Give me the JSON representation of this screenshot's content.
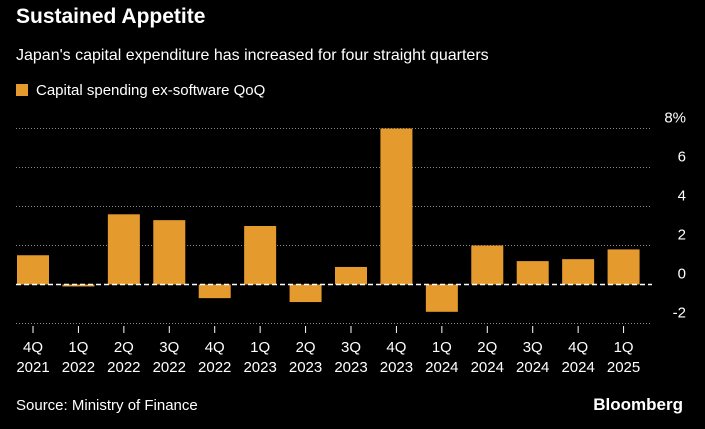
{
  "header": {
    "title": "Sustained Appetite",
    "subtitle": "Japan's capital expenditure has increased for four straight quarters"
  },
  "legend": {
    "label": "Capital spending ex-software QoQ"
  },
  "footer": {
    "source": "Source: Ministry of Finance",
    "brand": "Bloomberg"
  },
  "colors": {
    "bar": "#e59a2d",
    "grid": "#8a8a8a",
    "zero": "#ffffff",
    "background": "#000000"
  },
  "chart_data": {
    "type": "bar",
    "title": "Sustained Appetite",
    "xlabel": "",
    "ylabel": "",
    "categories": [
      [
        "4Q",
        "2021"
      ],
      [
        "1Q",
        "2022"
      ],
      [
        "2Q",
        "2022"
      ],
      [
        "3Q",
        "2022"
      ],
      [
        "4Q",
        "2022"
      ],
      [
        "1Q",
        "2023"
      ],
      [
        "2Q",
        "2023"
      ],
      [
        "3Q",
        "2023"
      ],
      [
        "4Q",
        "2023"
      ],
      [
        "1Q",
        "2024"
      ],
      [
        "2Q",
        "2024"
      ],
      [
        "3Q",
        "2024"
      ],
      [
        "4Q",
        "2024"
      ],
      [
        "1Q",
        "2025"
      ]
    ],
    "series": [
      {
        "name": "Capital spending ex-software QoQ",
        "values": [
          1.5,
          -0.1,
          3.6,
          3.3,
          -0.7,
          3.0,
          -0.9,
          0.9,
          8.0,
          -1.4,
          2.0,
          1.2,
          1.3,
          1.8
        ]
      }
    ],
    "ylim": [
      -2.2,
      8
    ],
    "y_ticks": [
      8,
      6,
      4,
      2,
      0,
      -2
    ],
    "y_tick_labels": [
      "8%",
      "6",
      "4",
      "2",
      "0",
      "-2"
    ],
    "grid": true,
    "legend_position": "top-left"
  }
}
